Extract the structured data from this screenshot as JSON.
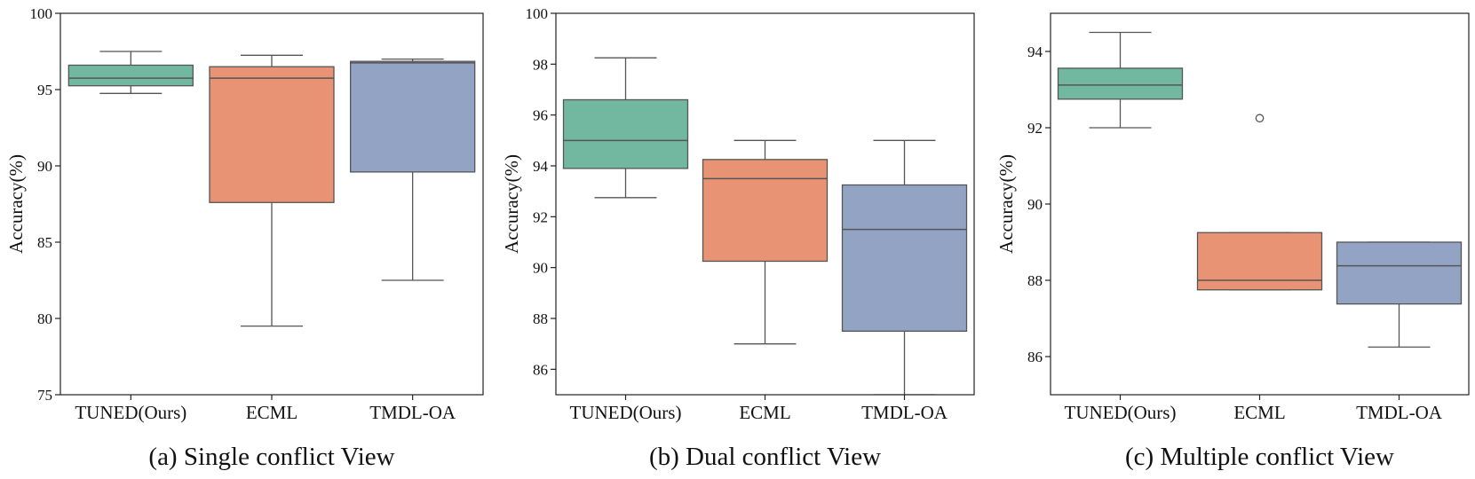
{
  "chart_data": [
    {
      "type": "box",
      "title": "(a) Single conflict View",
      "xlabel": "",
      "ylabel": "Accuracy(%)",
      "ylim": [
        75,
        100
      ],
      "yticks": [
        75,
        80,
        85,
        90,
        95,
        100
      ],
      "categories": [
        "TUNED(Ours)",
        "ECML",
        "TMDL-OA"
      ],
      "boxes": [
        {
          "name": "TUNED(Ours)",
          "whisker_low": 94.75,
          "q1": 95.25,
          "median": 95.75,
          "q3": 96.6,
          "whisker_high": 97.5,
          "outliers": [],
          "color": "#72b8a0"
        },
        {
          "name": "ECML",
          "whisker_low": 79.5,
          "q1": 87.6,
          "median": 95.75,
          "q3": 96.5,
          "whisker_high": 97.25,
          "outliers": [],
          "color": "#e89474"
        },
        {
          "name": "TMDL-OA",
          "whisker_low": 82.5,
          "q1": 89.6,
          "median": 96.75,
          "q3": 96.85,
          "whisker_high": 97.0,
          "outliers": [],
          "color": "#93a3c4"
        }
      ]
    },
    {
      "type": "box",
      "title": "(b) Dual conflict View",
      "xlabel": "",
      "ylabel": "Accuracy(%)",
      "ylim": [
        85,
        100
      ],
      "yticks": [
        86,
        88,
        90,
        92,
        94,
        96,
        98,
        100
      ],
      "categories": [
        "TUNED(Ours)",
        "ECML",
        "TMDL-OA"
      ],
      "boxes": [
        {
          "name": "TUNED(Ours)",
          "whisker_low": 92.75,
          "q1": 93.9,
          "median": 95.0,
          "q3": 96.6,
          "whisker_high": 98.25,
          "outliers": [],
          "color": "#72b8a0"
        },
        {
          "name": "ECML",
          "whisker_low": 87.0,
          "q1": 90.25,
          "median": 93.5,
          "q3": 94.25,
          "whisker_high": 95.0,
          "outliers": [],
          "color": "#e89474"
        },
        {
          "name": "TMDL-OA",
          "whisker_low": 85.0,
          "q1": 87.5,
          "median": 91.5,
          "q3": 93.25,
          "whisker_high": 95.0,
          "outliers": [],
          "color": "#93a3c4"
        }
      ]
    },
    {
      "type": "box",
      "title": "(c) Multiple conflict View",
      "xlabel": "",
      "ylabel": "Accuracy(%)",
      "ylim": [
        85,
        95
      ],
      "yticks": [
        86,
        88,
        90,
        92,
        94
      ],
      "categories": [
        "TUNED(Ours)",
        "ECML",
        "TMDL-OA"
      ],
      "boxes": [
        {
          "name": "TUNED(Ours)",
          "whisker_low": 92.0,
          "q1": 92.75,
          "median": 93.12,
          "q3": 93.56,
          "whisker_high": 94.5,
          "outliers": [],
          "color": "#72b8a0"
        },
        {
          "name": "ECML",
          "whisker_low": 87.75,
          "q1": 87.75,
          "median": 88.0,
          "q3": 89.25,
          "whisker_high": 89.25,
          "outliers": [
            92.25
          ],
          "color": "#e89474"
        },
        {
          "name": "TMDL-OA",
          "whisker_low": 86.25,
          "q1": 87.38,
          "median": 88.38,
          "q3": 89.0,
          "whisker_high": 89.0,
          "outliers": [],
          "color": "#93a3c4"
        }
      ]
    }
  ]
}
